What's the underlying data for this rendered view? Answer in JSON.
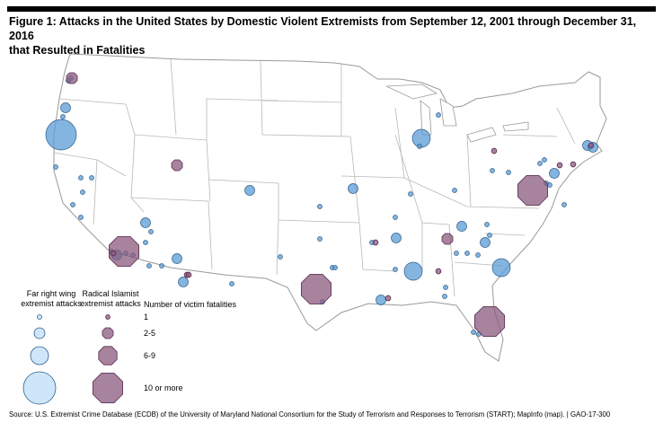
{
  "figure": {
    "title_line1": "Figure 1: Attacks in the United States by Domestic Violent Extremists from September 12, 2001 through December 31, 2016",
    "title_line2": "that Resulted in Fatalities"
  },
  "legend": {
    "far_right_header_line1": "Far right wing",
    "far_right_header_line2": "extremist attacks",
    "islamist_header_line1": "Radical Islamist",
    "islamist_header_line2": "extremist attacks",
    "fatalities_header": "Number of victim fatalities",
    "size_labels": [
      "1",
      "2-5",
      "6-9",
      "10 or more"
    ]
  },
  "colors": {
    "far_right_fill": "#5b9bd5",
    "far_right_stroke": "#2e5f8a",
    "islamist_fill": "#8b5a7e",
    "islamist_stroke": "#5a2c4f",
    "map_land": "#ffffff",
    "map_border": "#9a9a9a"
  },
  "marker_sizes": {
    "far_right": [
      "1",
      "2-5",
      "6-9",
      "10 or more"
    ],
    "islamist": [
      "1",
      "2-5",
      "6-9",
      "10 or more"
    ]
  },
  "source_text": "Source: U.S. Extremist Crime Database (ECDB) of the University of Maryland National Consortium for the Study of Terrorism and Responses to Terrorism (START); MapInfo (map).  |  GAO-17-300"
}
